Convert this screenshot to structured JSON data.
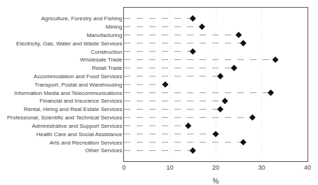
{
  "chart_data": {
    "type": "lollipop",
    "orientation": "horizontal",
    "categories": [
      "Agriculture, Forestry and Fishing",
      "Mining",
      "Manufacturing",
      "Electricity, Gas, Water and Waste Services",
      "Construction",
      "Wholesale Trade",
      "Retail Trade",
      "Accommodation and Food Services",
      "Transport, Postal and Warehousing",
      "Information Media and Telecommunications",
      "Financial and Insurance Services",
      "Rental, Hiring and Real Estate Services",
      "Professional, Scientific and Technical Services",
      "Administrative and Support Services",
      "Health Care and Social Assistance",
      "Arts and Recreation Services",
      "Other Services"
    ],
    "values": [
      15,
      17,
      25,
      26,
      15,
      33,
      24,
      21,
      9,
      32,
      22,
      21,
      28,
      14,
      20,
      26,
      15
    ],
    "color": "#111111",
    "marker": "diamond",
    "line_style": "dash",
    "xlabel": "%",
    "xlim": [
      0,
      40
    ],
    "xticks": [
      0,
      10,
      20,
      30,
      40
    ],
    "grid": true
  }
}
